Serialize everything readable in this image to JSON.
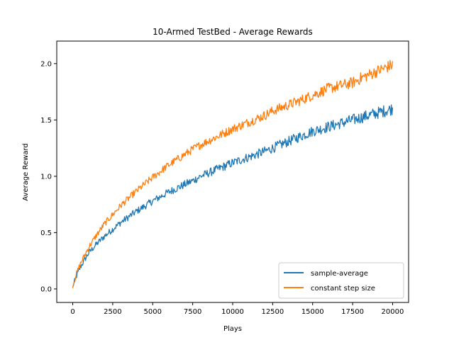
{
  "chart_data": {
    "type": "line",
    "title": "10-Armed TestBed - Average Rewards",
    "xlabel": "Plays",
    "ylabel": "Average Reward",
    "xlim": [
      -1000,
      21000
    ],
    "ylim": [
      -0.12,
      2.2
    ],
    "xticks": [
      0,
      2500,
      5000,
      7500,
      10000,
      12500,
      15000,
      17500,
      20000
    ],
    "yticks": [
      0.0,
      0.5,
      1.0,
      1.5,
      2.0
    ],
    "xtick_labels": [
      "0",
      "2500",
      "5000",
      "7500",
      "10000",
      "12500",
      "15000",
      "17500",
      "20000"
    ],
    "ytick_labels": [
      "0.0",
      "0.5",
      "1.0",
      "1.5",
      "2.0"
    ],
    "grid": false,
    "legend_position": "bottom-right",
    "series": [
      {
        "name": "sample-average",
        "color": "#1f77b4",
        "x": [
          0,
          250,
          500,
          750,
          1000,
          1500,
          2000,
          2500,
          3000,
          4000,
          5000,
          6000,
          7500,
          8000,
          10000,
          12000,
          12500,
          14000,
          15000,
          16000,
          17500,
          18000,
          19000,
          20000
        ],
        "values": [
          0.02,
          0.12,
          0.2,
          0.26,
          0.32,
          0.4,
          0.47,
          0.53,
          0.59,
          0.69,
          0.78,
          0.86,
          0.96,
          1.0,
          1.12,
          1.22,
          1.25,
          1.34,
          1.4,
          1.44,
          1.5,
          1.52,
          1.56,
          1.6
        ]
      },
      {
        "name": "constant step size",
        "color": "#ff7f0e",
        "x": [
          0,
          250,
          500,
          750,
          1000,
          1500,
          2000,
          2500,
          3000,
          4000,
          5000,
          6000,
          7500,
          8000,
          10000,
          12000,
          12500,
          14000,
          15000,
          16000,
          17500,
          18000,
          19000,
          20000
        ],
        "values": [
          0.03,
          0.14,
          0.23,
          0.3,
          0.37,
          0.48,
          0.58,
          0.66,
          0.74,
          0.87,
          0.99,
          1.1,
          1.24,
          1.28,
          1.42,
          1.54,
          1.58,
          1.66,
          1.72,
          1.78,
          1.83,
          1.87,
          1.93,
          1.99
        ]
      }
    ]
  }
}
